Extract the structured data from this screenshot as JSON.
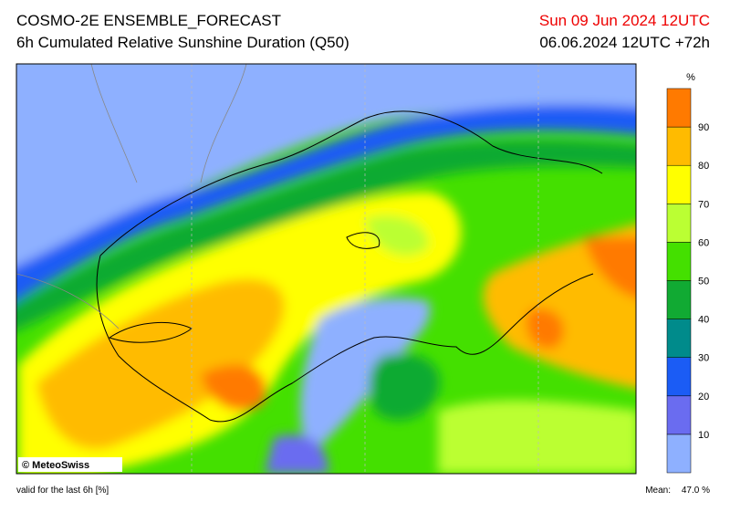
{
  "header": {
    "title": "COSMO-2E ENSEMBLE_FORECAST",
    "subtitle": "6h Cumulated Relative Sunshine Duration (Q50)",
    "valid_date": "Sun 09 Jun 2024 12UTC",
    "run": "06.06.2024 12UTC +72h"
  },
  "map": {
    "copyright": "© MeteoSwiss"
  },
  "colorbar": {
    "unit": "%",
    "levels": [
      10,
      20,
      30,
      40,
      50,
      60,
      70,
      80,
      90
    ],
    "colors": [
      "#8eb0ff",
      "#6a6cf0",
      "#1b5cf5",
      "#008b8b",
      "#11aa33",
      "#44e000",
      "#bbff33",
      "#ffff00",
      "#ffbb00",
      "#ff7a00"
    ]
  },
  "footer": {
    "note": "valid for the last 6h [%]",
    "mean_label": "Mean:",
    "mean_value": "47.0 %"
  }
}
